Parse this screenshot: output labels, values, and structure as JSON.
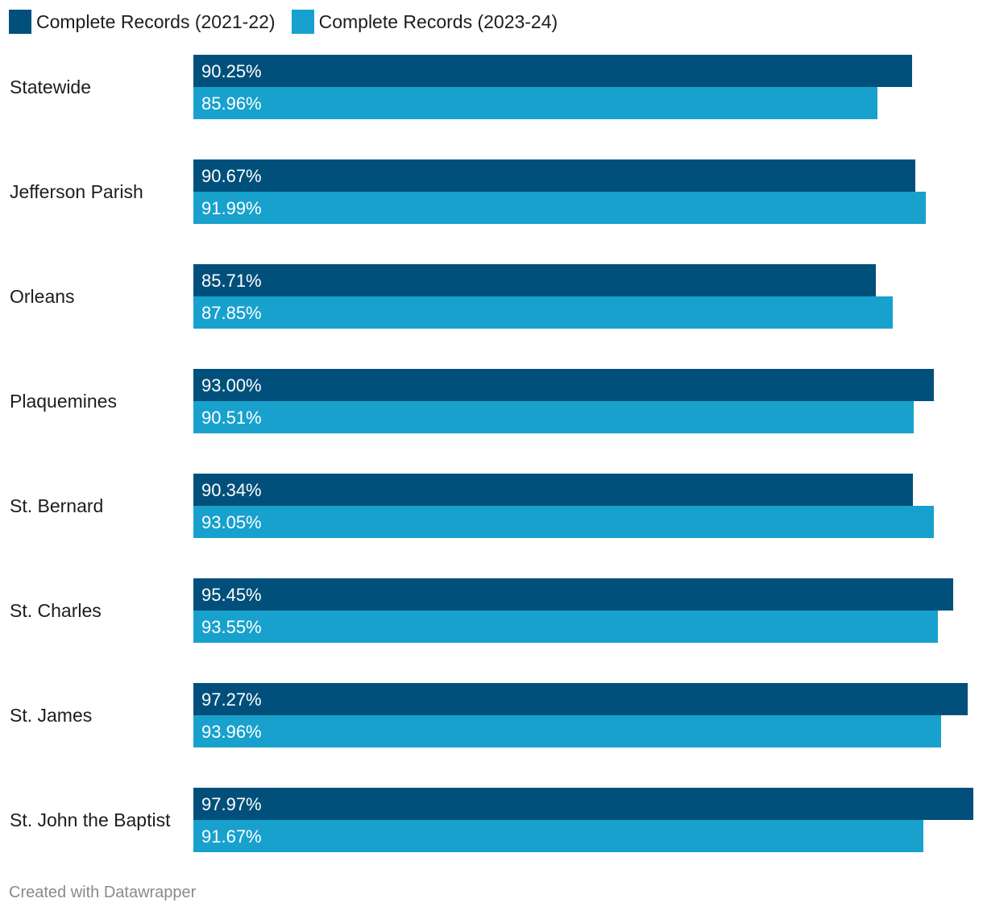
{
  "chart_data": {
    "type": "bar",
    "orientation": "horizontal",
    "categories": [
      "Statewide",
      "Jefferson Parish",
      "Orleans",
      "Plaquemines",
      "St. Bernard",
      "St. Charles",
      "St. James",
      "St. John the Baptist"
    ],
    "series": [
      {
        "name": "Complete Records (2021-22)",
        "color": "#00507b",
        "values": [
          90.25,
          90.67,
          85.71,
          93.0,
          90.34,
          95.45,
          97.27,
          97.97
        ],
        "labels": [
          "90.25%",
          "90.67%",
          "85.71%",
          "93.00%",
          "90.34%",
          "95.45%",
          "97.27%",
          "97.97%"
        ]
      },
      {
        "name": "Complete Records (2023-24)",
        "color": "#18a1cd",
        "values": [
          85.96,
          91.99,
          87.85,
          90.51,
          93.05,
          93.55,
          93.96,
          91.67
        ],
        "labels": [
          "85.96%",
          "91.99%",
          "87.85%",
          "90.51%",
          "93.05%",
          "93.55%",
          "93.96%",
          "91.67%"
        ]
      }
    ],
    "xlim": [
      0,
      97.97
    ],
    "legend_position": "top-left",
    "grid": false,
    "footer": "Created with Datawrapper"
  }
}
